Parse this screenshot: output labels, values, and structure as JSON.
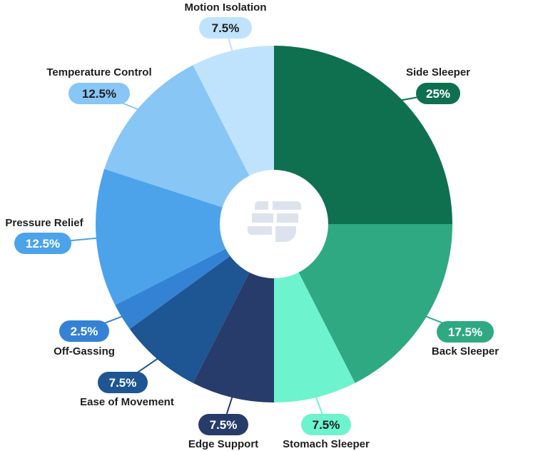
{
  "chart_data": {
    "type": "pie",
    "categories": [
      "Side Sleeper",
      "Back Sleeper",
      "Stomach Sleeper",
      "Edge Support",
      "Ease of Movement",
      "Off-Gassing",
      "Pressure Relief",
      "Temperature Control",
      "Motion Isolation"
    ],
    "values": [
      25,
      17.5,
      7.5,
      7.5,
      7.5,
      2.5,
      12.5,
      12.5,
      7.5
    ],
    "value_labels": [
      "25%",
      "17.5%",
      "7.5%",
      "7.5%",
      "7.5%",
      "2.5%",
      "12.5%",
      "12.5%",
      "7.5%"
    ],
    "colors": [
      "#0f7050",
      "#2fa982",
      "#6ef3cf",
      "#273c6a",
      "#1e5593",
      "#3482d4",
      "#4ca3ea",
      "#87c6f5",
      "#c0e3fd"
    ],
    "label_text_colors": [
      "#ffffff",
      "#ffffff",
      "#1f1f1f",
      "#ffffff",
      "#ffffff",
      "#ffffff",
      "#ffffff",
      "#1f1f1f",
      "#1f1f1f"
    ],
    "start_angle_deg": 0,
    "direction": "clockwise",
    "center_icon": "mattress-logo-icon",
    "legend": "none",
    "title": ""
  }
}
